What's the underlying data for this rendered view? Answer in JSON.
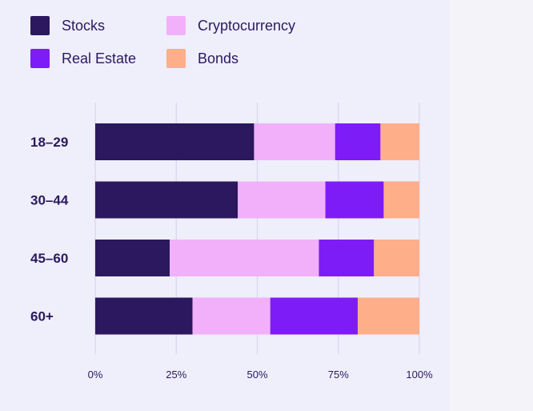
{
  "chart_data": {
    "type": "bar",
    "orientation": "horizontal",
    "stacked": true,
    "categories": [
      "18–29",
      "30–44",
      "45–60",
      "60+"
    ],
    "series": [
      {
        "name": "Stocks",
        "color": "#2b185e",
        "values": [
          49,
          44,
          23,
          30
        ]
      },
      {
        "name": "Cryptocurrency",
        "color": "#f2b0fb",
        "values": [
          25,
          27,
          46,
          24
        ]
      },
      {
        "name": "Real Estate",
        "color": "#7e1cf7",
        "values": [
          14,
          18,
          17,
          27
        ]
      },
      {
        "name": "Bonds",
        "color": "#ffae8a",
        "values": [
          12,
          11,
          14,
          19
        ]
      }
    ],
    "x_ticks": [
      "0%",
      "25%",
      "50%",
      "75%",
      "100%"
    ],
    "xlim": [
      0,
      100
    ],
    "title": "",
    "xlabel": "",
    "ylabel": "",
    "grid": true,
    "legend": "top-left"
  }
}
